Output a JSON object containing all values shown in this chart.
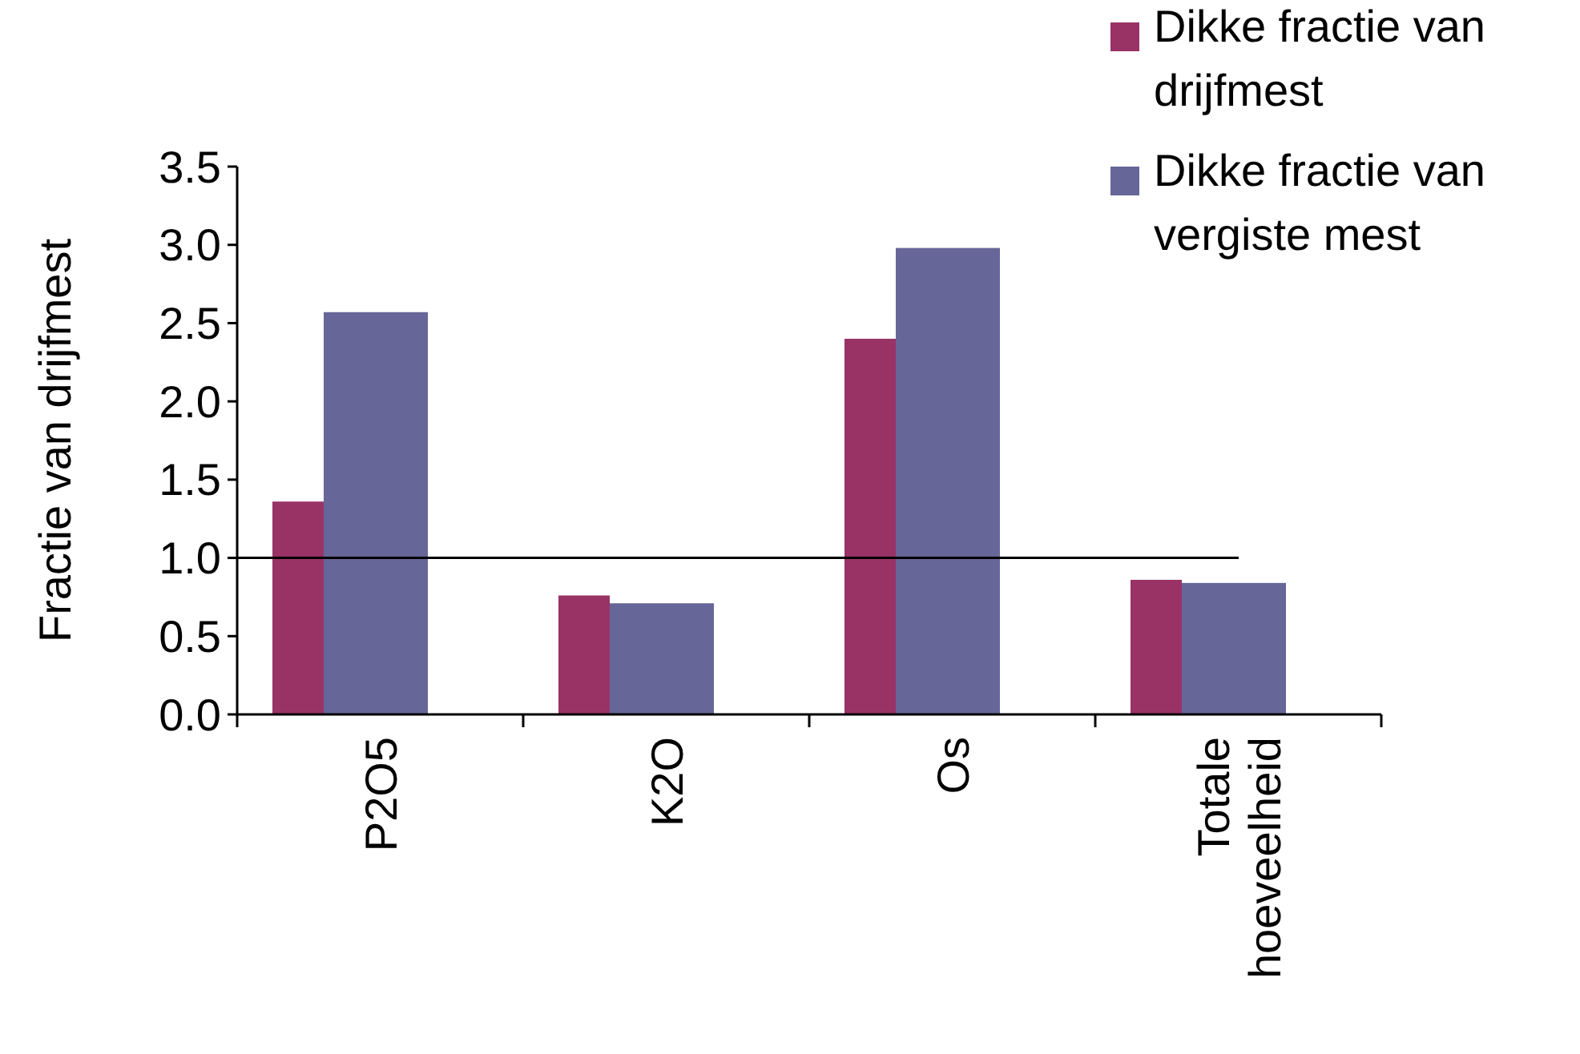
{
  "chart_data": {
    "type": "bar",
    "ylabel": "Fractie van drijfmest",
    "categories": [
      "P2O5",
      "K2O",
      "Os",
      "Totale hoeveelheid"
    ],
    "series": [
      {
        "name": "Dikke fractie van drijfmest",
        "color": "#993366",
        "values": [
          1.36,
          0.76,
          2.4,
          0.86
        ]
      },
      {
        "name": "Dikke fractie van vergiste mest",
        "color": "#666699",
        "values": [
          2.57,
          0.71,
          2.98,
          0.84
        ]
      }
    ],
    "ylim": [
      0,
      3.5
    ],
    "yticks": [
      {
        "value": 0,
        "label": "0.0"
      },
      {
        "value": 0.5,
        "label": "0.5"
      },
      {
        "value": 1,
        "label": "1.0"
      },
      {
        "value": 1.5,
        "label": "1.5"
      },
      {
        "value": 2,
        "label": "2.0"
      },
      {
        "value": 2.5,
        "label": "2.5"
      },
      {
        "value": 3,
        "label": "3.0"
      },
      {
        "value": 3.5,
        "label": "3.5"
      }
    ],
    "ref_lines": [
      {
        "axis": "y",
        "value": 1,
        "color": "#000000"
      }
    ],
    "legend": "top right",
    "grid": false
  }
}
